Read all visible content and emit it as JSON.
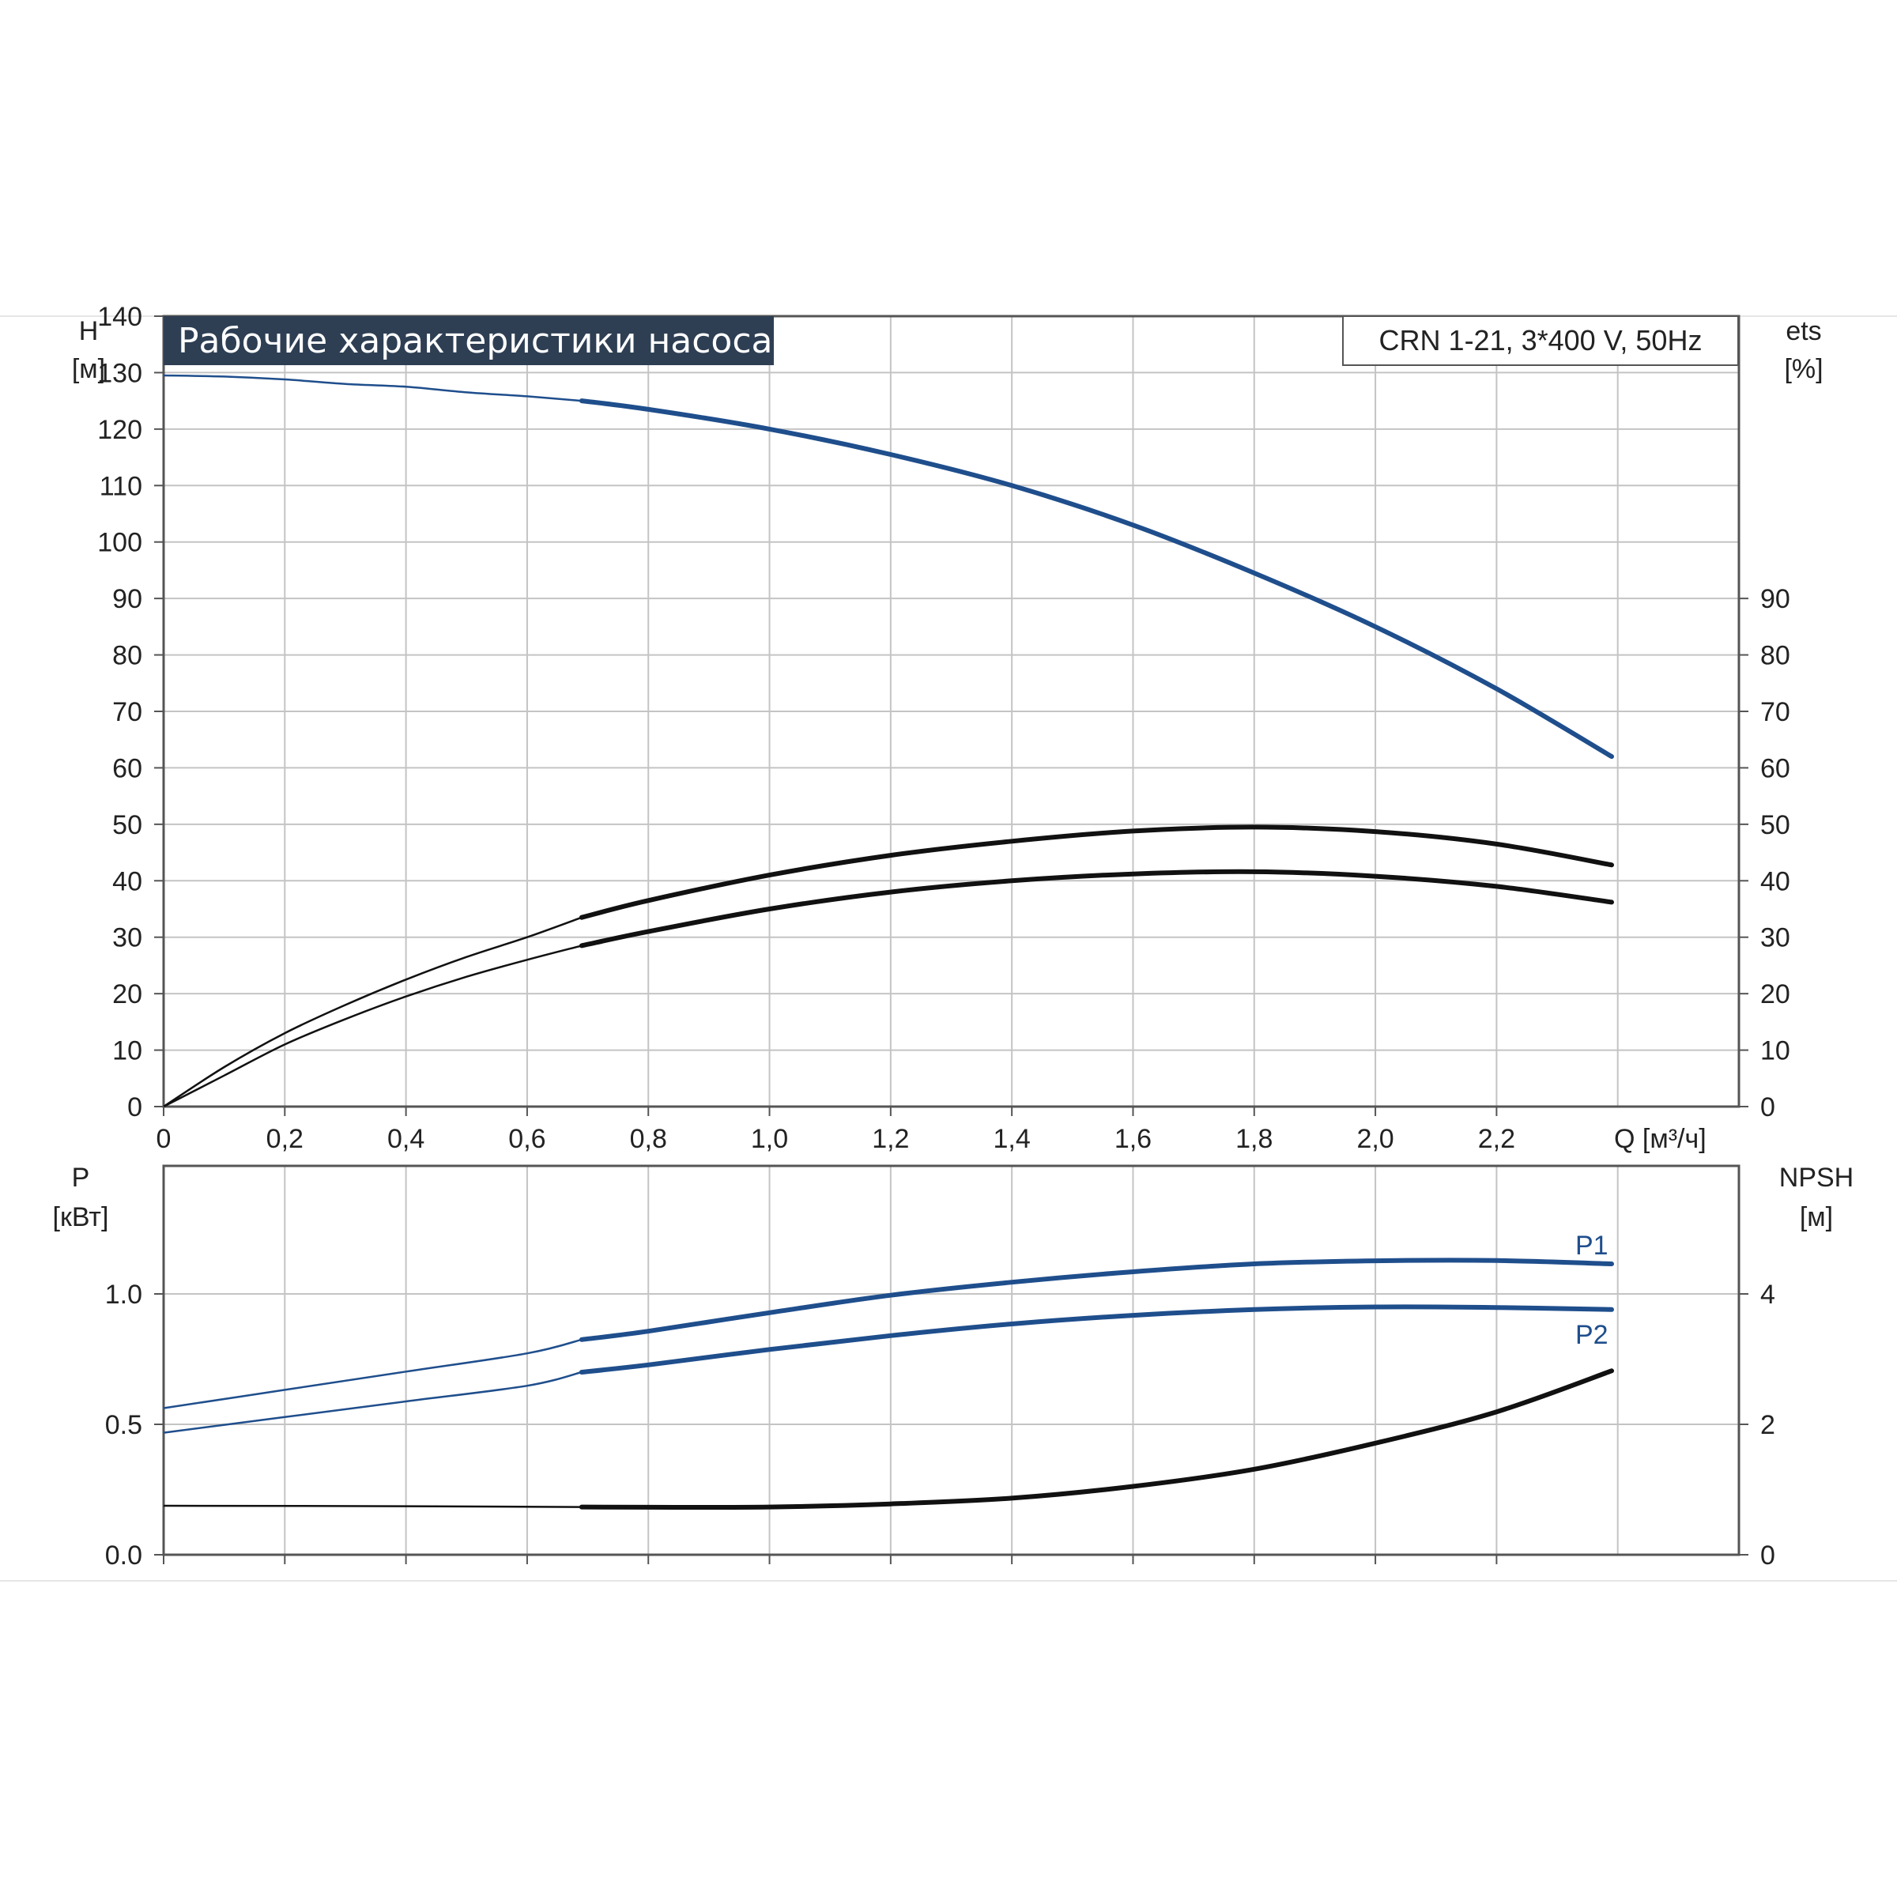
{
  "title": "Рабочие характеристики насоса",
  "model": "CRN 1-21, 3*400 V, 50Hz",
  "colors": {
    "blue": "#1f4e8c",
    "black": "#111111",
    "title_bg": "#2e3f54",
    "grid": "#c4c4c4"
  },
  "chart_data": [
    {
      "type": "line",
      "panel": "top",
      "y_left_title": [
        "H",
        "[м]"
      ],
      "y_right_title": [
        "ets",
        "[%]"
      ],
      "xlabel": "Q [м³/ч]",
      "xlim": [
        0,
        2.6
      ],
      "x_ticks": [
        0,
        0.2,
        0.4,
        0.6,
        0.8,
        1.0,
        1.2,
        1.4,
        1.6,
        1.8,
        2.0,
        2.2
      ],
      "x_tick_labels": [
        "0",
        "0,2",
        "0,4",
        "0,6",
        "0,8",
        "1,0",
        "1,2",
        "1,4",
        "1,6",
        "1,8",
        "2,0",
        "2,2"
      ],
      "ylim": [
        0,
        140
      ],
      "y_left_ticks": [
        0,
        10,
        20,
        30,
        40,
        50,
        60,
        70,
        80,
        90,
        100,
        110,
        120,
        130,
        140
      ],
      "y_right_ticks": [
        0,
        10,
        20,
        30,
        40,
        50,
        60,
        70,
        80,
        90
      ],
      "grid": true,
      "series": [
        {
          "color": "blue",
          "thin_end": 0.69,
          "points": [
            [
              0,
              129.5
            ],
            [
              0.1,
              129.3
            ],
            [
              0.2,
              128.8
            ],
            [
              0.3,
              128.0
            ],
            [
              0.4,
              127.5
            ],
            [
              0.5,
              126.5
            ],
            [
              0.6,
              125.8
            ],
            [
              0.69,
              125.0
            ],
            [
              0.8,
              123.5
            ],
            [
              1.0,
              120.0
            ],
            [
              1.2,
              115.5
            ],
            [
              1.4,
              110.0
            ],
            [
              1.6,
              103.0
            ],
            [
              1.8,
              94.5
            ],
            [
              2.0,
              85.0
            ],
            [
              2.2,
              74.0
            ],
            [
              2.39,
              62.0
            ]
          ]
        },
        {
          "color": "black",
          "thin_end": 0.69,
          "points": [
            [
              0,
              0
            ],
            [
              0.1,
              7
            ],
            [
              0.2,
              13
            ],
            [
              0.3,
              18
            ],
            [
              0.4,
              22.5
            ],
            [
              0.5,
              26.5
            ],
            [
              0.6,
              30
            ],
            [
              0.69,
              33.5
            ],
            [
              0.8,
              36.5
            ],
            [
              1.0,
              41.0
            ],
            [
              1.2,
              44.5
            ],
            [
              1.4,
              47.0
            ],
            [
              1.6,
              48.8
            ],
            [
              1.8,
              49.5
            ],
            [
              2.0,
              48.7
            ],
            [
              2.2,
              46.5
            ],
            [
              2.39,
              42.8
            ]
          ]
        },
        {
          "color": "black",
          "thin_end": 0.69,
          "points": [
            [
              0,
              0
            ],
            [
              0.1,
              5.5
            ],
            [
              0.2,
              11
            ],
            [
              0.3,
              15.5
            ],
            [
              0.4,
              19.5
            ],
            [
              0.5,
              23
            ],
            [
              0.6,
              26
            ],
            [
              0.69,
              28.5
            ],
            [
              0.8,
              31
            ],
            [
              1.0,
              35.0
            ],
            [
              1.2,
              38.0
            ],
            [
              1.4,
              40.0
            ],
            [
              1.6,
              41.2
            ],
            [
              1.8,
              41.6
            ],
            [
              2.0,
              40.8
            ],
            [
              2.2,
              39.0
            ],
            [
              2.39,
              36.2
            ]
          ]
        }
      ]
    },
    {
      "type": "line",
      "panel": "bottom",
      "y_left_title": [
        "P",
        "[кВт]"
      ],
      "y_right_title": [
        "NPSH",
        "[м]"
      ],
      "xlim": [
        0,
        2.6
      ],
      "x_ticks": [
        0,
        0.2,
        0.4,
        0.6,
        0.8,
        1.0,
        1.2,
        1.4,
        1.6,
        1.8,
        2.0,
        2.2
      ],
      "ylim": [
        0,
        1.0
      ],
      "y_left_ticks": [
        0.0,
        0.5,
        1.0
      ],
      "y_left_tick_labels": [
        "0.0",
        "0.5",
        "1.0"
      ],
      "y_right_ticks": [
        0,
        2,
        4
      ],
      "y_right_tick_labels": [
        "0",
        "2",
        "4"
      ],
      "grid": true,
      "series": [
        {
          "name": "P1",
          "color": "blue",
          "thin_end": 0.69,
          "points": [
            [
              0,
              0.562
            ],
            [
              0.2,
              0.632
            ],
            [
              0.4,
              0.702
            ],
            [
              0.6,
              0.772
            ],
            [
              0.69,
              0.825
            ],
            [
              0.8,
              0.857
            ],
            [
              1.0,
              0.928
            ],
            [
              1.2,
              0.995
            ],
            [
              1.4,
              1.045
            ],
            [
              1.6,
              1.085
            ],
            [
              1.8,
              1.115
            ],
            [
              2.0,
              1.127
            ],
            [
              2.2,
              1.128
            ],
            [
              2.39,
              1.115
            ]
          ]
        },
        {
          "name": "P2",
          "color": "blue",
          "thin_end": 0.69,
          "points": [
            [
              0,
              0.468
            ],
            [
              0.2,
              0.528
            ],
            [
              0.4,
              0.588
            ],
            [
              0.6,
              0.648
            ],
            [
              0.69,
              0.7
            ],
            [
              0.8,
              0.728
            ],
            [
              1.0,
              0.787
            ],
            [
              1.2,
              0.84
            ],
            [
              1.4,
              0.885
            ],
            [
              1.6,
              0.918
            ],
            [
              1.8,
              0.94
            ],
            [
              2.0,
              0.95
            ],
            [
              2.2,
              0.948
            ],
            [
              2.39,
              0.94
            ]
          ]
        },
        {
          "name": "",
          "color": "black",
          "thin_end": 0.69,
          "points": [
            [
              0,
              0.188
            ],
            [
              0.4,
              0.186
            ],
            [
              0.69,
              0.183
            ],
            [
              0.8,
              0.182
            ],
            [
              1.0,
              0.183
            ],
            [
              1.2,
              0.195
            ],
            [
              1.4,
              0.217
            ],
            [
              1.6,
              0.262
            ],
            [
              1.8,
              0.328
            ],
            [
              2.0,
              0.428
            ],
            [
              2.2,
              0.548
            ],
            [
              2.39,
              0.705
            ]
          ]
        }
      ]
    }
  ]
}
